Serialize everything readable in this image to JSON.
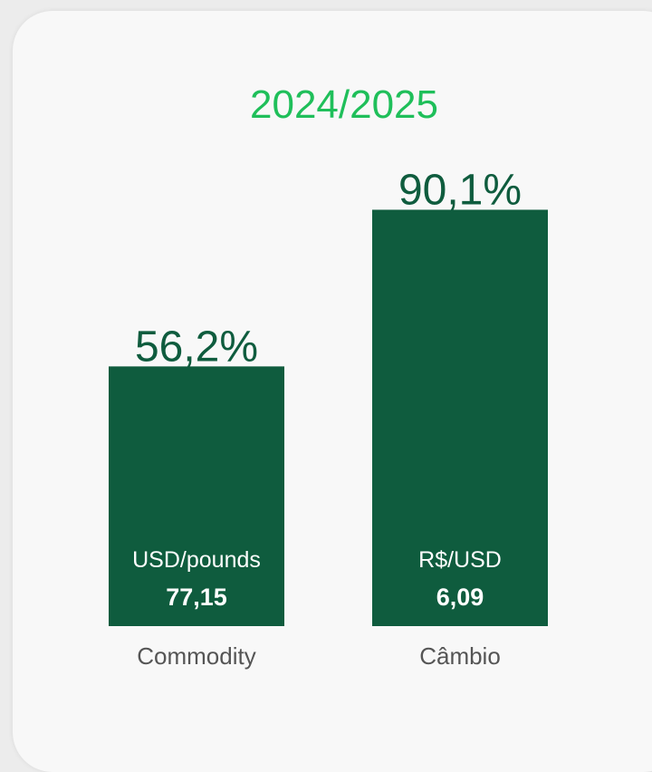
{
  "chart_data": {
    "type": "bar",
    "title": "2024/2025",
    "categories": [
      "Commodity",
      "Câmbio"
    ],
    "values": [
      56.2,
      90.1
    ],
    "value_labels": [
      "56,2%",
      "90,1%"
    ],
    "units": [
      "USD/pounds",
      "R$/USD"
    ],
    "rates": [
      "77,15",
      "6,09"
    ],
    "ylim": [
      0,
      100
    ],
    "grid": false,
    "colors": {
      "bar": "#0f5c3e",
      "title": "#1fbf5a",
      "value_label": "#0f5c3e",
      "category": "#555555"
    }
  }
}
